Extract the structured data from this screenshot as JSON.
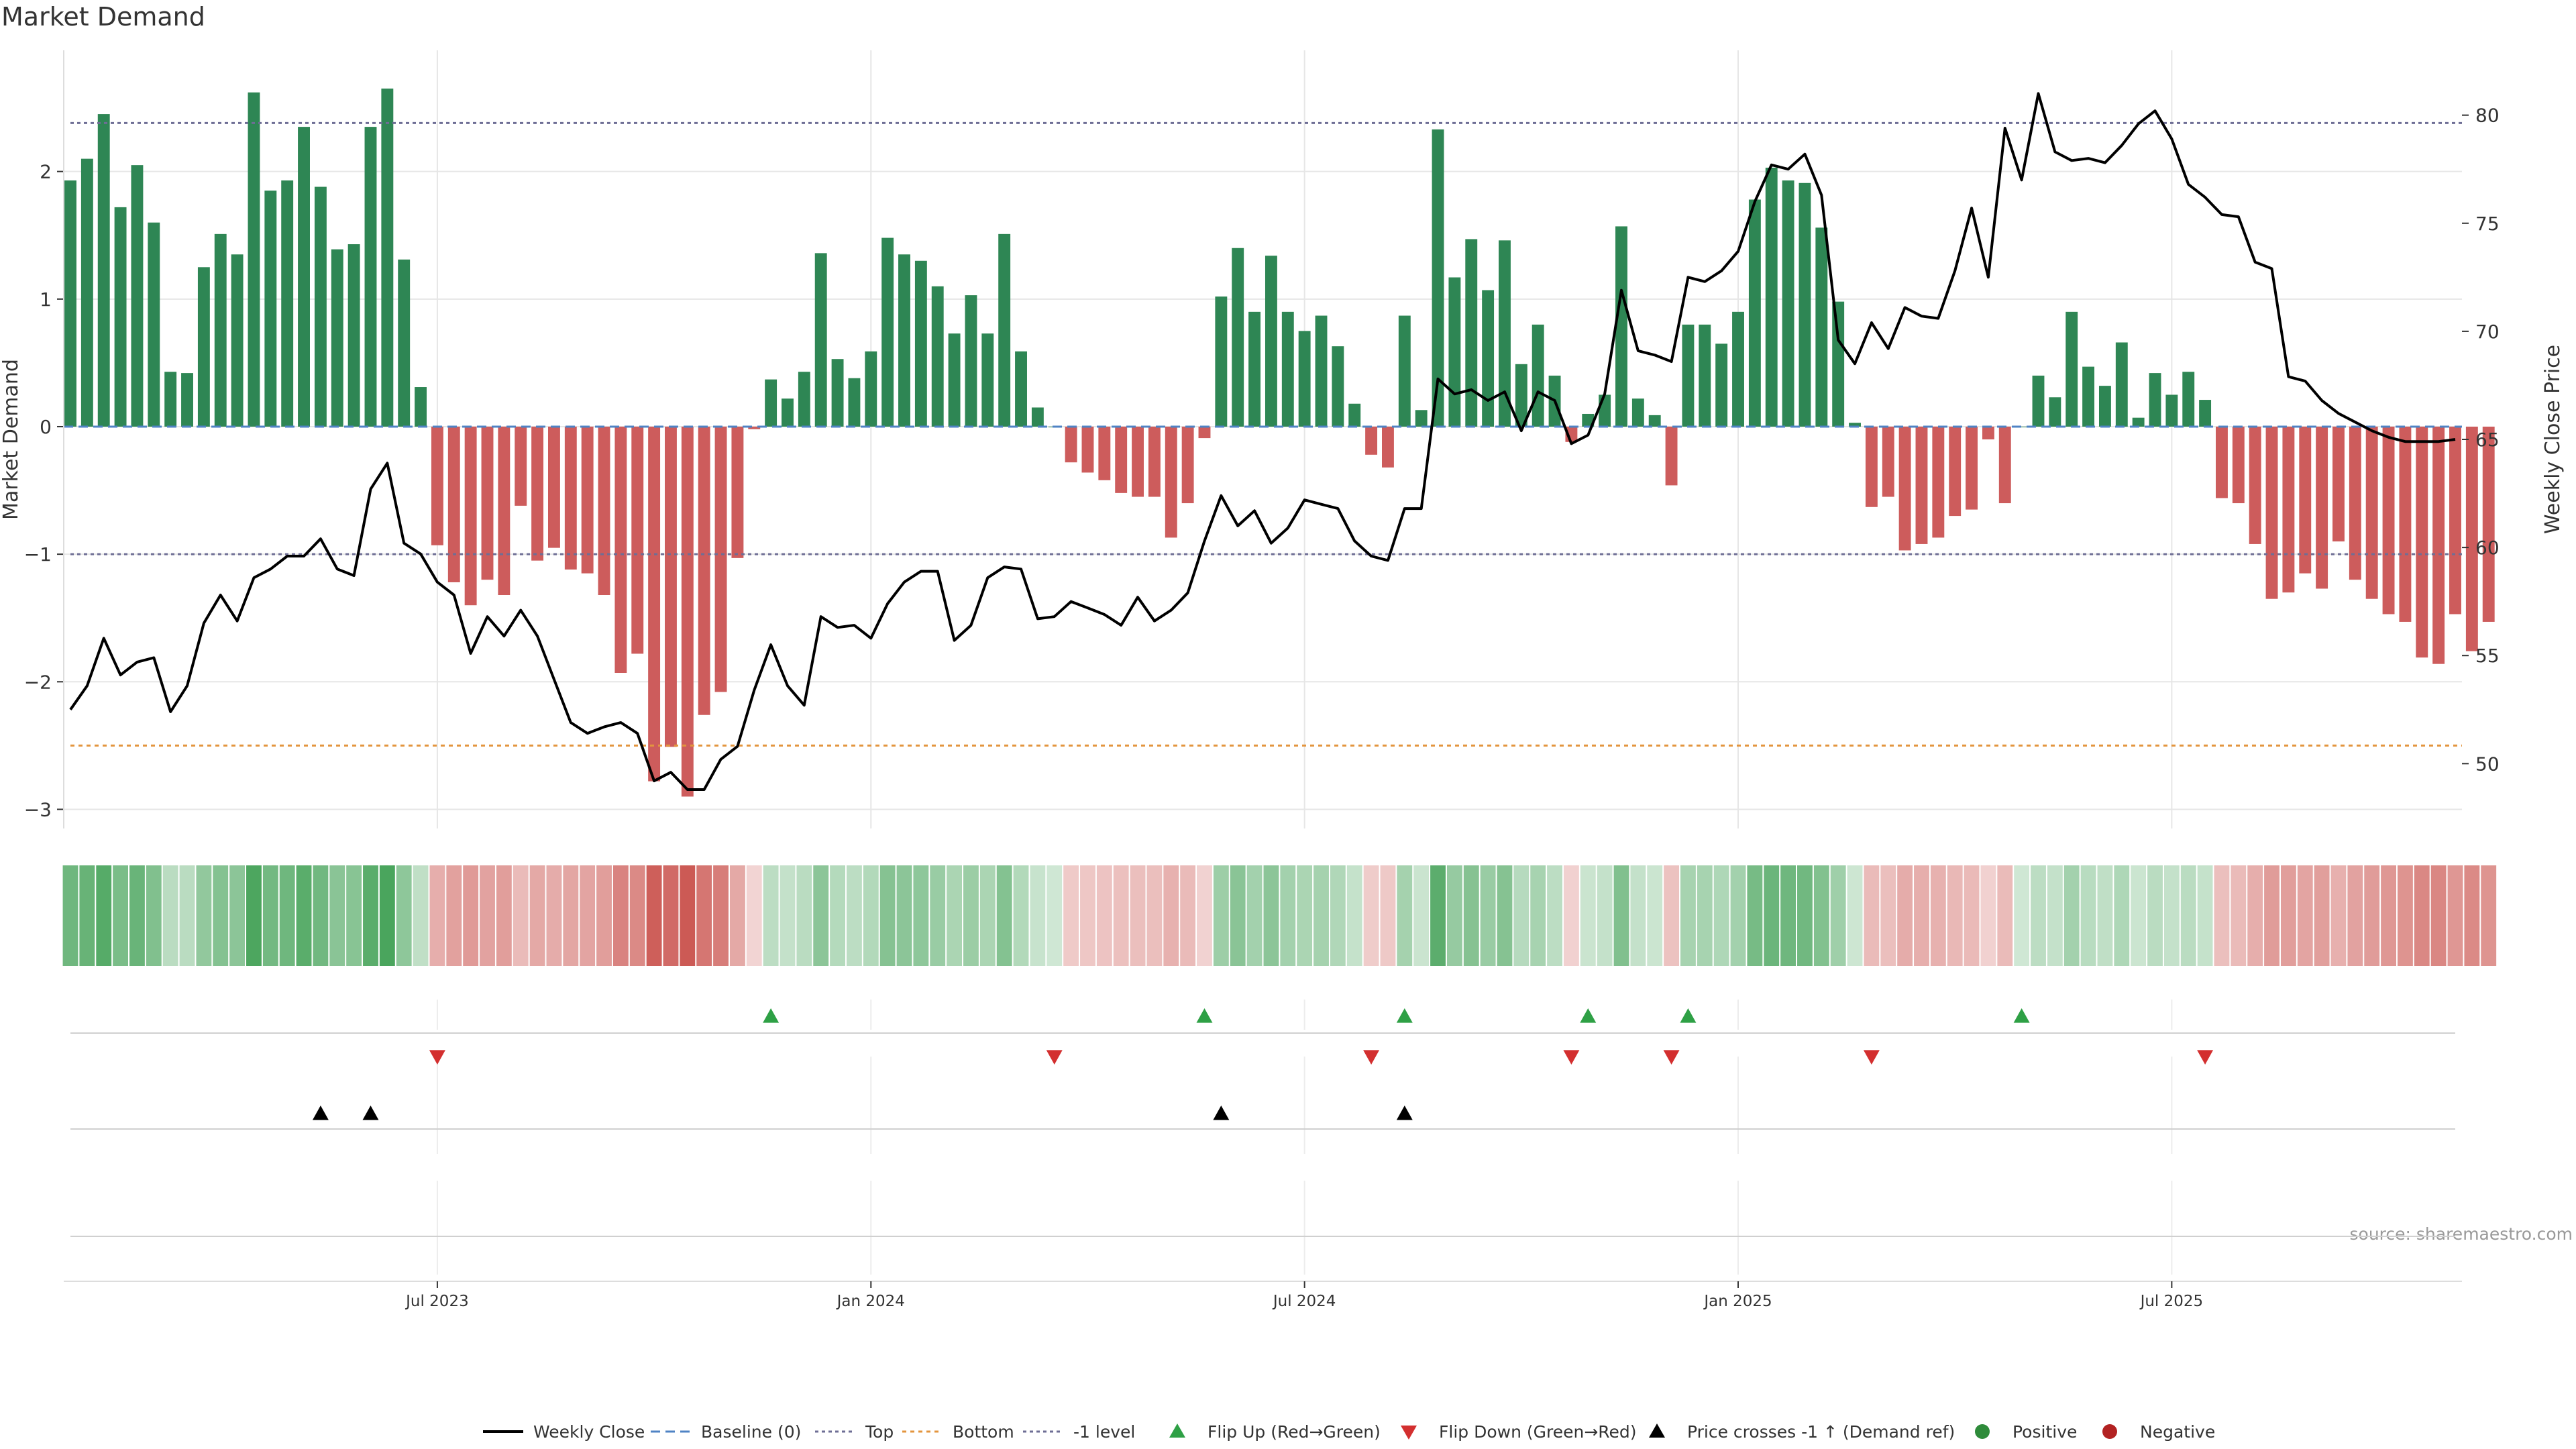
{
  "title": "Market Demand",
  "source_note": "source: sharemaestro.com",
  "chart_data": {
    "type": "bar",
    "title": "Market Demand",
    "ylabel": "Market Demand",
    "y2label": "Weekly Close Price",
    "ylim": [
      -3.15,
      2.95
    ],
    "y2lim": [
      47.0,
      83.0
    ],
    "yticks": [
      -3,
      -2,
      -1,
      0,
      1,
      2
    ],
    "y2ticks": [
      50,
      55,
      60,
      65,
      70,
      75,
      80
    ],
    "xtick_labels": [
      "Jul 2023",
      "Jan 2024",
      "Jul 2024",
      "Jan 2025",
      "Jul 2025"
    ],
    "levels": {
      "top": 2.38,
      "bottom": -2.5,
      "minus_one": -1.0
    },
    "weeks": 144,
    "tick_week_index": [
      22,
      48,
      74,
      100,
      126
    ],
    "demand": [
      1.93,
      2.1,
      2.45,
      1.72,
      2.05,
      1.6,
      0.43,
      0.42,
      1.25,
      1.51,
      1.35,
      2.62,
      1.85,
      1.93,
      2.35,
      1.88,
      1.39,
      1.43,
      2.35,
      2.65,
      1.31,
      0.31,
      -0.93,
      -1.22,
      -1.4,
      -1.2,
      -1.32,
      -0.62,
      -1.05,
      -0.95,
      -1.12,
      -1.15,
      -1.32,
      -1.93,
      -1.78,
      -2.78,
      -2.51,
      -2.9,
      -2.26,
      -2.08,
      -1.03,
      -0.02,
      0.37,
      0.22,
      0.43,
      1.36,
      0.53,
      0.38,
      0.59,
      1.48,
      1.35,
      1.3,
      1.1,
      0.73,
      1.03,
      0.73,
      1.51,
      0.59,
      0.15,
      0.0,
      -0.28,
      -0.36,
      -0.42,
      -0.52,
      -0.55,
      -0.55,
      -0.87,
      -0.6,
      -0.09,
      1.02,
      1.4,
      0.9,
      1.34,
      0.9,
      0.75,
      0.87,
      0.63,
      0.18,
      -0.22,
      -0.32,
      0.87,
      0.13,
      2.33,
      1.17,
      1.47,
      1.07,
      1.46,
      0.49,
      0.8,
      0.4,
      -0.12,
      0.1,
      0.25,
      1.57,
      0.22,
      0.09,
      -0.46,
      0.8,
      0.8,
      0.65,
      0.9,
      1.78,
      2.03,
      1.93,
      1.91,
      1.56,
      0.98,
      0.03,
      -0.63,
      -0.55,
      -0.97,
      -0.92,
      -0.87,
      -0.7,
      -0.65,
      -0.1,
      -0.6,
      0.0,
      0.4,
      0.23,
      0.9,
      0.47,
      0.32,
      0.66,
      0.07,
      0.42,
      0.25,
      0.43,
      0.21,
      -0.56,
      -0.6,
      -0.92,
      -1.35,
      -1.3,
      -1.15,
      -1.27,
      -0.9,
      -1.2,
      -1.35,
      -1.47,
      -1.53,
      -1.81,
      -1.86,
      -1.47,
      -1.76,
      -1.53
    ],
    "close": [
      52.5,
      53.6,
      55.8,
      54.1,
      54.7,
      54.9,
      52.4,
      53.6,
      56.5,
      57.8,
      56.6,
      58.6,
      59.0,
      59.6,
      59.6,
      60.4,
      59.0,
      58.7,
      62.7,
      63.9,
      60.2,
      59.7,
      58.4,
      57.8,
      55.1,
      56.8,
      55.9,
      57.1,
      55.9,
      53.9,
      51.9,
      51.4,
      51.7,
      51.9,
      51.4,
      49.2,
      49.6,
      48.8,
      48.8,
      50.2,
      50.8,
      53.4,
      55.5,
      53.6,
      52.7,
      56.8,
      56.3,
      56.4,
      55.8,
      57.4,
      58.4,
      58.9,
      58.9,
      55.7,
      56.4,
      58.6,
      59.1,
      59.0,
      56.7,
      56.8,
      57.5,
      57.2,
      56.9,
      56.4,
      57.7,
      56.6,
      57.1,
      57.9,
      60.3,
      62.4,
      61.0,
      61.7,
      60.2,
      60.9,
      62.2,
      62.0,
      61.8,
      60.3,
      59.6,
      59.4,
      61.8,
      61.8,
      67.8,
      67.1,
      67.3,
      66.8,
      67.2,
      65.4,
      67.2,
      66.8,
      64.8,
      65.2,
      67.1,
      71.9,
      69.1,
      68.9,
      68.6,
      72.5,
      72.3,
      72.8,
      73.7,
      76.0,
      77.7,
      77.5,
      78.2,
      76.3,
      69.6,
      68.5,
      70.4,
      69.2,
      71.1,
      70.7,
      70.6,
      72.8,
      75.7,
      72.5,
      79.4,
      77.0,
      81.0,
      78.3,
      77.9,
      78.0,
      77.8,
      78.6,
      79.6,
      80.2,
      78.9,
      76.8,
      76.2,
      75.4,
      75.3,
      73.2,
      72.9,
      67.9,
      67.7,
      66.8,
      66.2,
      65.8,
      65.4,
      65.1,
      64.9,
      64.9,
      64.9,
      65.0
    ],
    "flip_up_week_index": [
      42,
      68,
      80,
      91,
      97,
      117
    ],
    "flip_down_week_index": [
      22,
      59,
      78,
      90,
      96,
      108,
      128
    ],
    "price_cross_week_index": [
      15,
      18,
      69,
      80
    ],
    "series": [
      {
        "name": "Weekly Close",
        "color": "#000000"
      },
      {
        "name": "Baseline (0)",
        "color": "#4f83c4"
      },
      {
        "name": "Top",
        "color": "#6e6e95"
      },
      {
        "name": "Bottom",
        "color": "#e3953e"
      },
      {
        "name": "-1 level",
        "color": "#6e6e95"
      },
      {
        "name": "Flip Up (Red→Green)",
        "color": "#2ea045"
      },
      {
        "name": "Flip Down (Green→Red)",
        "color": "#d32f2f"
      },
      {
        "name": "Price crosses -1 ↑ (Demand ref)",
        "color": "#000000"
      },
      {
        "name": "Positive",
        "color": "#2e8b3a"
      },
      {
        "name": "Negative",
        "color": "#b22222"
      }
    ],
    "grid": true,
    "legend_position": "bottom"
  },
  "colors": {
    "positive_bar": "#2e8654",
    "negative_bar": "#cd5c5c",
    "heat_positive": "#3f9f53",
    "heat_negative": "#cc5a55",
    "grid": "#e6e6e6",
    "axis_text": "#333333"
  }
}
